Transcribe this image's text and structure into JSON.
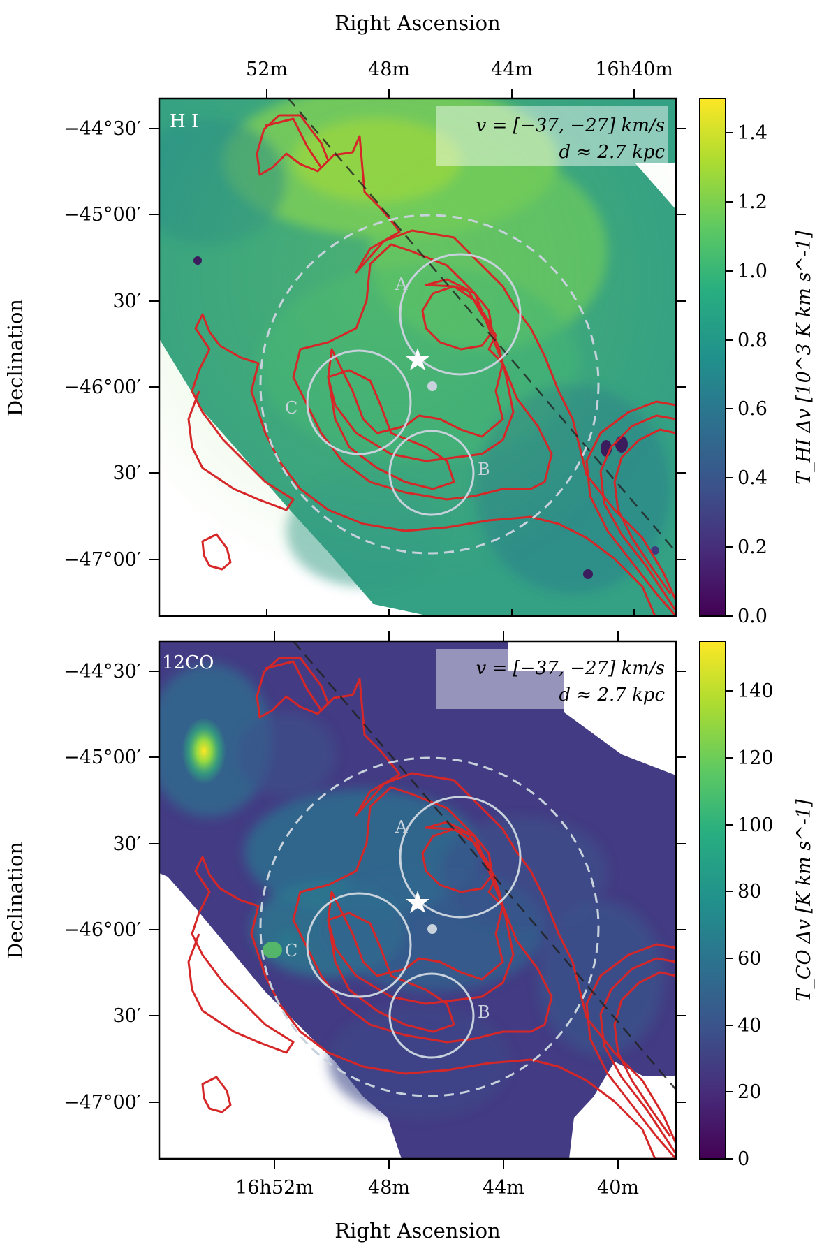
{
  "chart_data": [
    {
      "type": "heatmap",
      "panel_label": "H I",
      "velocity_label": "v = [−37, −27] km/s",
      "distance_label": "d ≈ 2.7 kpc",
      "xlabel": "Right Ascension",
      "ylabel": "Declination",
      "x_tick_labels": [
        "52m",
        "48m",
        "44m",
        "16h40m"
      ],
      "y_tick_labels": [
        "−44°30′",
        "−45°00′",
        "30′",
        "−46°00′",
        "30′",
        "−47°00′"
      ],
      "colorbar": {
        "label": "T_HI Δv [10^3 K km s^-1]",
        "range": [
          0,
          1.5
        ],
        "ticks": [
          "0.0",
          "0.2",
          "0.4",
          "0.6",
          "0.8",
          "1.0",
          "1.2",
          "1.4"
        ],
        "colormap": "viridis"
      },
      "regions": [
        {
          "name": "A"
        },
        {
          "name": "B"
        },
        {
          "name": "C"
        }
      ]
    },
    {
      "type": "heatmap",
      "panel_label": "12CO",
      "velocity_label": "v = [−37, −27] km/s",
      "distance_label": "d ≈ 2.7 kpc",
      "xlabel": "Right Ascension",
      "ylabel": "Declination",
      "x_tick_labels": [
        "16h52m",
        "48m",
        "44m",
        "40m"
      ],
      "y_tick_labels": [
        "−44°30′",
        "−45°00′",
        "30′",
        "−46°00′",
        "30′",
        "−47°00′"
      ],
      "colorbar": {
        "label": "T_CO Δv [K km s^-1]",
        "range": [
          0,
          155
        ],
        "ticks": [
          "0",
          "20",
          "40",
          "60",
          "80",
          "100",
          "120",
          "140"
        ],
        "colormap": "viridis"
      },
      "regions": [
        {
          "name": "A"
        },
        {
          "name": "B"
        },
        {
          "name": "C"
        }
      ]
    }
  ],
  "colors": {
    "contour": "#d62728",
    "circle": "#c8d2dc",
    "dashed_line": "#222222"
  }
}
